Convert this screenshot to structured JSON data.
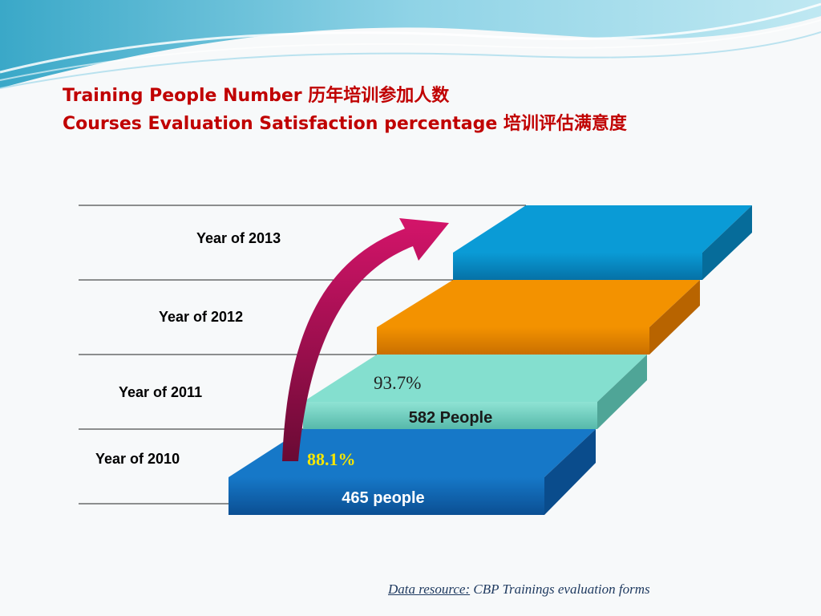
{
  "slide": {
    "title_line1": "Training People  Number  历年培训参加人数",
    "title_line2": "Courses Evaluation Satisfaction percentage  培训评估满意度"
  },
  "years": [
    {
      "label": "Year of 2013",
      "color": "#0a9bd6"
    },
    {
      "label": "Year of 2012",
      "color": "#f39200"
    },
    {
      "label": "Year of 2011",
      "color": "#7fdccc",
      "people": "582 People",
      "satisfaction": "93.7%"
    },
    {
      "label": "Year of 2010",
      "color": "#1678c8",
      "people": "465 people",
      "satisfaction": "88.1%"
    }
  ],
  "accent": {
    "arrow": "#c4105c",
    "highlight_percent": "#f7e600"
  },
  "footer": {
    "source_label": "Data resource:",
    "source_text": "CBP Trainings evaluation forms"
  }
}
